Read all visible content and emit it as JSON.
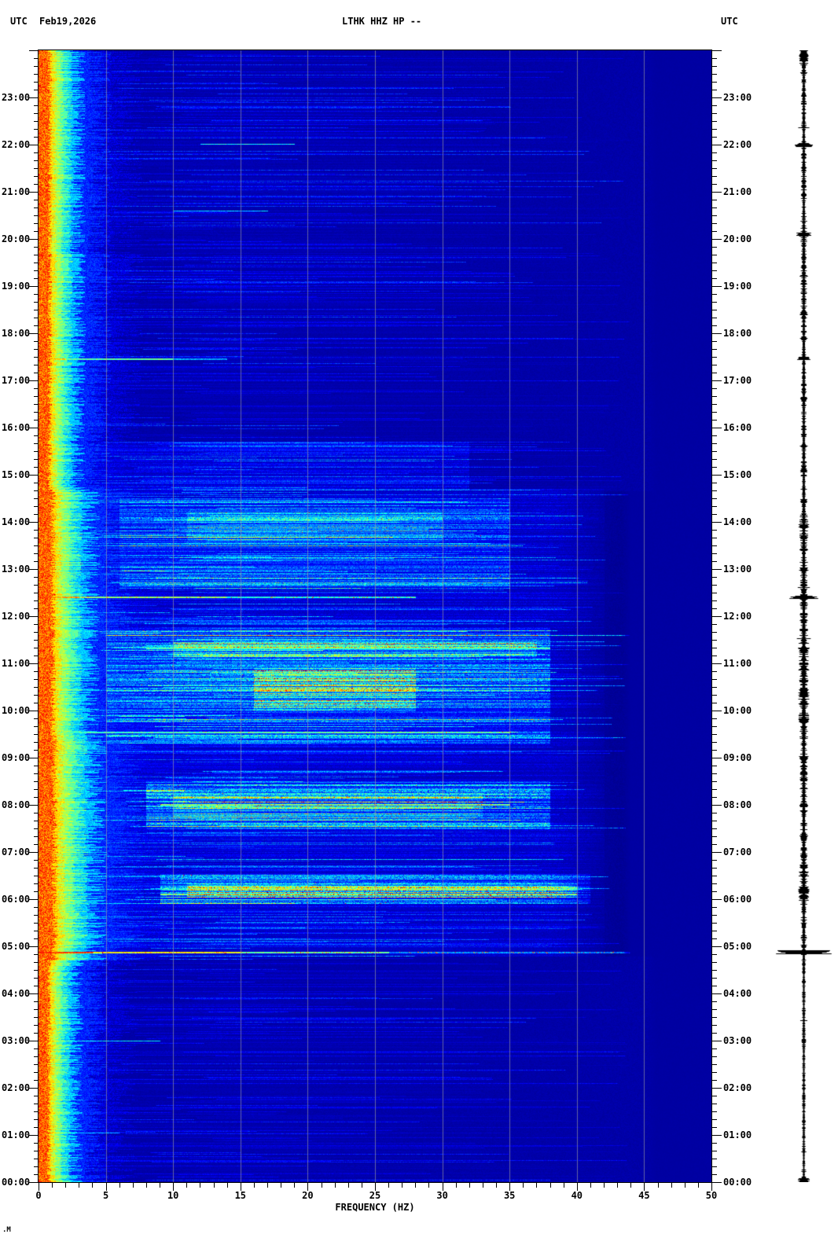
{
  "header": {
    "utc_left": "UTC",
    "date": "Feb19,2026",
    "title": "LTHK HHZ HP --",
    "utc_right": "UTC"
  },
  "corner_glyph": ".M",
  "axes": {
    "x_label": "FREQUENCY (HZ)",
    "x_tick_labels": [
      "0",
      "5",
      "10",
      "15",
      "20",
      "25",
      "30",
      "35",
      "40",
      "45",
      "50"
    ],
    "x_minor_step_hz": 1,
    "y_hour_labels": [
      "23:00",
      "22:00",
      "21:00",
      "20:00",
      "19:00",
      "18:00",
      "17:00",
      "16:00",
      "15:00",
      "14:00",
      "13:00",
      "12:00",
      "11:00",
      "10:00",
      "09:00",
      "08:00",
      "07:00",
      "06:00",
      "05:00",
      "04:00",
      "03:00",
      "02:00",
      "01:00",
      "00:00"
    ],
    "y_minor_step_min": 10
  },
  "colors": {
    "background_blue": "#0000A8",
    "flat_zone_blue": "#0000A2",
    "grid": "#A0A0A0",
    "text": "#000000",
    "trace": "#000000"
  },
  "chart_data": {
    "type": "heatmap",
    "subtype": "seismic-spectrogram",
    "title": "LTHK HHZ HP --",
    "date": "Feb19,2026",
    "timezone": "UTC",
    "xlabel": "FREQUENCY (HZ)",
    "x_range_hz": [
      0,
      50
    ],
    "y_axis": "time of day, 00:00 at bottom to 24:00 at top, hour gridless ticks every 10 min",
    "y_range_hours": [
      0,
      24
    ],
    "colormap": "jet",
    "grid_lines_hz": [
      5,
      10,
      15,
      20,
      25,
      30,
      35,
      40,
      45
    ],
    "base_level": 0.04,
    "band_profile": [
      [
        0,
        0.75,
        0.78
      ],
      [
        0.75,
        1.05,
        0.66
      ],
      [
        1.05,
        1.45,
        0.55
      ],
      [
        1.45,
        1.95,
        0.46
      ],
      [
        1.95,
        2.7,
        0.32
      ],
      [
        2.7,
        4.2,
        0.16
      ],
      [
        4.2,
        6,
        0.08
      ]
    ],
    "band_width_profile": [
      [
        0,
        4.7,
        0.95
      ],
      [
        4.7,
        9.5,
        1.45
      ],
      [
        9.5,
        14.7,
        1.3
      ],
      [
        14.7,
        24,
        1.0
      ]
    ],
    "activity_profile": [
      [
        0,
        0.75,
        0.15
      ],
      [
        0.75,
        3.2,
        0.1
      ],
      [
        3.2,
        4.7,
        0.12
      ],
      [
        4.7,
        5.4,
        0.45
      ],
      [
        5.4,
        5.9,
        0.5
      ],
      [
        5.9,
        6.6,
        0.75
      ],
      [
        6.6,
        7.5,
        0.55
      ],
      [
        7.5,
        8.5,
        0.8
      ],
      [
        8.5,
        9.3,
        0.6
      ],
      [
        9.3,
        9.7,
        0.7
      ],
      [
        9.7,
        11.7,
        0.85
      ],
      [
        11.7,
        12.5,
        0.6
      ],
      [
        12.5,
        14.6,
        0.65
      ],
      [
        14.6,
        15.6,
        0.4
      ],
      [
        15.6,
        17.5,
        0.25
      ],
      [
        17.5,
        21,
        0.22
      ],
      [
        21,
        24,
        0.25
      ]
    ],
    "active_regions": [
      {
        "t": [
          5.9,
          6.55
        ],
        "f": [
          9,
          41
        ],
        "level": 0.2
      },
      {
        "t": [
          6.05,
          6.35
        ],
        "f": [
          11,
          40
        ],
        "level": 0.28
      },
      {
        "t": [
          7.5,
          8.5
        ],
        "f": [
          8,
          38
        ],
        "level": 0.2
      },
      {
        "t": [
          7.75,
          8.2
        ],
        "f": [
          10,
          33
        ],
        "level": 0.16
      },
      {
        "t": [
          9.3,
          11.75
        ],
        "f": [
          5,
          38
        ],
        "level": 0.18
      },
      {
        "t": [
          10.0,
          10.9
        ],
        "f": [
          16,
          28
        ],
        "level": 0.26
      },
      {
        "t": [
          11.15,
          11.45
        ],
        "f": [
          10,
          37
        ],
        "level": 0.24
      },
      {
        "t": [
          12.6,
          14.5
        ],
        "f": [
          6,
          35
        ],
        "level": 0.13
      },
      {
        "t": [
          13.6,
          14.2
        ],
        "f": [
          11,
          30
        ],
        "level": 0.11
      },
      {
        "t": [
          4.8,
          14.7
        ],
        "f": [
          1.5,
          42
        ],
        "level": 0.06
      },
      {
        "t": [
          14.7,
          15.7
        ],
        "f": [
          4,
          32
        ],
        "level": 0.07
      }
    ],
    "line_events": [
      {
        "t": 4.885,
        "rows": 2,
        "speck": 0.1,
        "segs": [
          [
            0,
            4,
            0.82
          ],
          [
            4,
            15,
            0.62
          ],
          [
            15,
            26,
            0.47
          ],
          [
            26,
            44,
            0.26
          ]
        ]
      },
      {
        "t": 12.41,
        "rows": 2,
        "speck": 0.07,
        "segs": [
          [
            0,
            3,
            0.72
          ],
          [
            3,
            14,
            0.52
          ],
          [
            14,
            28,
            0.4
          ]
        ]
      },
      {
        "t": 17.47,
        "rows": 2,
        "segs": [
          [
            0,
            2,
            0.68
          ],
          [
            2,
            10,
            0.47
          ],
          [
            10,
            14,
            0.28
          ]
        ]
      },
      {
        "t": 22.02,
        "rows": 1,
        "segs": [
          [
            12,
            19,
            0.4
          ]
        ]
      },
      {
        "t": 20.6,
        "rows": 1,
        "segs": [
          [
            10,
            17,
            0.33
          ]
        ]
      },
      {
        "t": 9.55,
        "rows": 2,
        "segs": [
          [
            2,
            35,
            0.44
          ]
        ]
      },
      {
        "t": 11.33,
        "rows": 2,
        "segs": [
          [
            8,
            38,
            0.44
          ]
        ]
      },
      {
        "t": 6.12,
        "rows": 2,
        "speck": 0.05,
        "segs": [
          [
            9,
            40,
            0.5
          ]
        ]
      },
      {
        "t": 8.02,
        "rows": 2,
        "speck": 0.05,
        "segs": [
          [
            9,
            35,
            0.5
          ]
        ]
      },
      {
        "t": 3.0,
        "rows": 1,
        "segs": [
          [
            1,
            9,
            0.35
          ]
        ]
      },
      {
        "t": 1.05,
        "rows": 1,
        "segs": [
          [
            1,
            6,
            0.3
          ]
        ]
      }
    ],
    "quiet_zone": {
      "t": [
        4.8,
        14.65
      ],
      "f_active": 43.3,
      "f_base": 45.15
    }
  },
  "waveform": {
    "description": "vertical seismogram trace, right margin, black on white",
    "envelope": [
      [
        0,
        0.3,
        1.2
      ],
      [
        0.3,
        3.0,
        0.8
      ],
      [
        3.0,
        4.7,
        0.9
      ],
      [
        4.7,
        5.0,
        1.6
      ],
      [
        5.0,
        5.8,
        1.5
      ],
      [
        5.8,
        6.6,
        2.6
      ],
      [
        6.6,
        7.6,
        1.8
      ],
      [
        7.6,
        8.4,
        2.2
      ],
      [
        8.4,
        9.4,
        2.0
      ],
      [
        9.4,
        11.5,
        2.8
      ],
      [
        11.5,
        12.3,
        2.2
      ],
      [
        12.3,
        12.6,
        2.6
      ],
      [
        12.6,
        13.2,
        2.0
      ],
      [
        13.2,
        14.2,
        2.2
      ],
      [
        14.2,
        15.5,
        1.6
      ],
      [
        15.5,
        17.3,
        1.4
      ],
      [
        17.3,
        19.0,
        1.5
      ],
      [
        19.0,
        20.4,
        1.6
      ],
      [
        20.4,
        22.3,
        1.4
      ],
      [
        22.3,
        23.7,
        1.3
      ],
      [
        23.7,
        24,
        2.2
      ]
    ],
    "spikes": [
      [
        23.97,
        5
      ],
      [
        22.0,
        11
      ],
      [
        20.1,
        9
      ],
      [
        18.42,
        5
      ],
      [
        17.47,
        9
      ],
      [
        16.6,
        4
      ],
      [
        15.1,
        4
      ],
      [
        14.45,
        4
      ],
      [
        13.92,
        8
      ],
      [
        13.0,
        6
      ],
      [
        12.41,
        19
      ],
      [
        11.9,
        5
      ],
      [
        11.3,
        7
      ],
      [
        10.9,
        5
      ],
      [
        10.4,
        5
      ],
      [
        9.8,
        6
      ],
      [
        9.0,
        6
      ],
      [
        8.55,
        5
      ],
      [
        8.0,
        5
      ],
      [
        7.3,
        4
      ],
      [
        6.7,
        5
      ],
      [
        6.2,
        7
      ],
      [
        6.05,
        6
      ],
      [
        4.885,
        38
      ],
      [
        3.0,
        3
      ],
      [
        1.8,
        2
      ],
      [
        0.05,
        7
      ]
    ]
  }
}
